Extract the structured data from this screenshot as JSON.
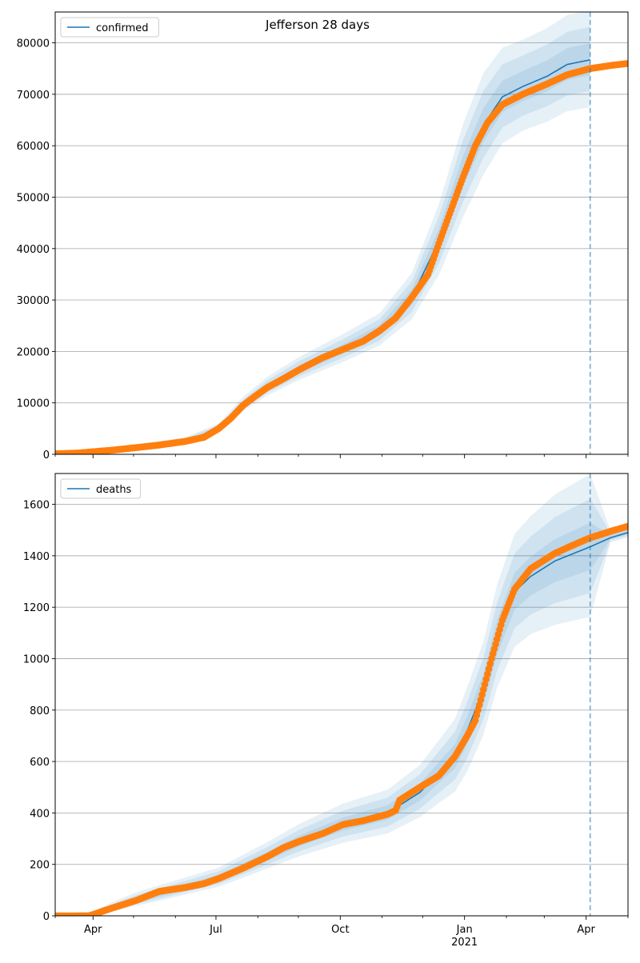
{
  "title": "Jefferson 28 days",
  "colors": {
    "observed": "#ff7f0e",
    "model": "#1f77b4",
    "grid": "#b0b0b0",
    "forecast_line": "#1f77b4"
  },
  "chart_data": [
    {
      "type": "line",
      "panel": "top",
      "title": "Jefferson 28 days",
      "legend": [
        "confirmed"
      ],
      "legend_placement": "top-left",
      "x_unit": "days since 2020-03-01",
      "xlim": [
        3,
        427
      ],
      "ylim": [
        0,
        86000
      ],
      "yticks": [
        0,
        10000,
        20000,
        30000,
        40000,
        50000,
        60000,
        70000,
        80000
      ],
      "yticklabels": [
        "0",
        "10000",
        "20000",
        "30000",
        "40000",
        "50000",
        "60000",
        "70000",
        "80000"
      ],
      "grid": "y",
      "forecast_start_day": 399,
      "observed": {
        "days": [
          3,
          20,
          31,
          45,
          63,
          80,
          99,
          113,
          124,
          133,
          142,
          151,
          160,
          172,
          184,
          201,
          216,
          231,
          243,
          255,
          267,
          279,
          287,
          296,
          305,
          314,
          323,
          334,
          349,
          367,
          382,
          399,
          414,
          427
        ],
        "values": [
          100,
          250,
          500,
          800,
          1300,
          1800,
          2500,
          3300,
          5000,
          7000,
          9500,
          11300,
          13000,
          14700,
          16500,
          18800,
          20400,
          22000,
          24000,
          26500,
          30500,
          35000,
          41000,
          47500,
          54000,
          60000,
          64500,
          68000,
          70000,
          72000,
          73800,
          75000,
          75600,
          76000
        ]
      },
      "model": {
        "days": [
          3,
          31,
          63,
          99,
          124,
          142,
          160,
          184,
          216,
          243,
          267,
          287,
          305,
          320,
          334,
          349,
          367,
          382,
          399
        ],
        "values": [
          100,
          500,
          1300,
          2500,
          5000,
          9500,
          13000,
          16500,
          20400,
          24000,
          30500,
          41500,
          55000,
          64000,
          69500,
          71500,
          73500,
          75800,
          76700
        ],
        "band_spread": [
          0.1,
          0.1,
          0.1,
          0.1,
          0.1,
          0.12,
          0.12,
          0.12,
          0.12,
          0.12,
          0.14,
          0.16,
          0.16,
          0.15,
          0.13,
          0.12,
          0.12,
          0.12,
          0.12
        ]
      }
    },
    {
      "type": "line",
      "panel": "bottom",
      "legend": [
        "deaths"
      ],
      "legend_placement": "top-left",
      "x_unit": "days since 2020-03-01",
      "xlim": [
        3,
        427
      ],
      "ylim": [
        0,
        1720
      ],
      "yticks": [
        0,
        200,
        400,
        600,
        800,
        1000,
        1200,
        1400,
        1600
      ],
      "yticklabels": [
        "0",
        "200",
        "400",
        "600",
        "800",
        "1000",
        "1200",
        "1400",
        "1600"
      ],
      "xticks": [
        31,
        122,
        214,
        306,
        396
      ],
      "xticklabels": [
        "Apr",
        "Jul",
        "Oct",
        "Jan\n2021",
        "Apr"
      ],
      "xticklabel_year": "2021",
      "minor_xticks": [
        3,
        61,
        92,
        153,
        183,
        245,
        275,
        337,
        365,
        427
      ],
      "grid": "y",
      "forecast_start_day": 399,
      "observed": {
        "days": [
          3,
          28,
          31,
          45,
          63,
          80,
          99,
          113,
          124,
          142,
          160,
          172,
          184,
          201,
          216,
          231,
          249,
          255,
          258,
          273,
          287,
          299,
          308,
          314,
          320,
          326,
          334,
          343,
          355,
          373,
          390,
          399,
          414,
          427
        ],
        "values": [
          0,
          0,
          5,
          30,
          60,
          95,
          110,
          125,
          145,
          185,
          230,
          265,
          290,
          320,
          355,
          370,
          395,
          410,
          450,
          500,
          545,
          620,
          700,
          760,
          880,
          1000,
          1150,
          1270,
          1350,
          1410,
          1450,
          1470,
          1495,
          1515
        ]
      },
      "model": {
        "days": [
          3,
          31,
          63,
          99,
          124,
          160,
          184,
          216,
          249,
          273,
          299,
          308,
          320,
          330,
          343,
          355,
          373,
          399,
          414,
          427
        ],
        "values": [
          0,
          5,
          60,
          110,
          145,
          230,
          290,
          355,
          400,
          480,
          620,
          720,
          880,
          1080,
          1260,
          1320,
          1380,
          1435,
          1470,
          1490
        ],
        "band_spread": [
          0.2,
          0.5,
          0.35,
          0.25,
          0.22,
          0.2,
          0.2,
          0.2,
          0.2,
          0.2,
          0.22,
          0.22,
          0.2,
          0.18,
          0.17,
          0.17,
          0.18,
          0.19,
          0.012,
          0.012
        ]
      }
    }
  ]
}
